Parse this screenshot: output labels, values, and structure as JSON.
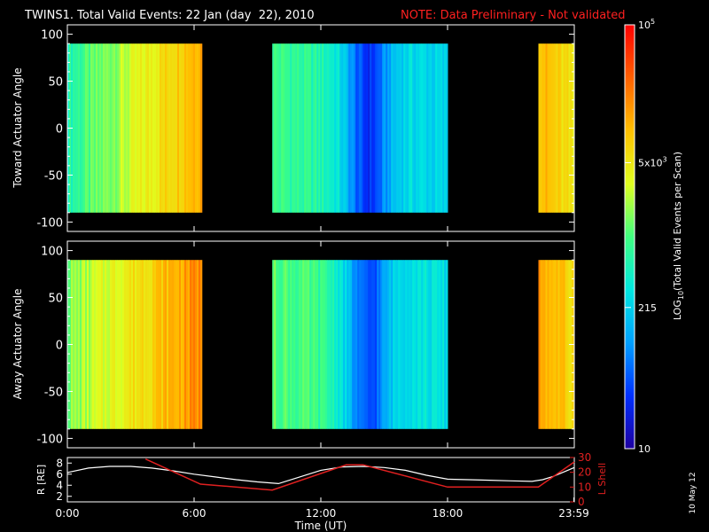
{
  "header": {
    "title": "TWINS1. Total Valid Events: 22 Jan (day  22), 2010",
    "note": "NOTE: Data Preliminary - Not validated"
  },
  "side_stamp": "10 May 12",
  "colors": {
    "background": "#000000",
    "frame": "#ffffff",
    "note": "#ff2020",
    "r_line": "#ffffff",
    "lshell_line": "#e02020"
  },
  "colorbar": {
    "label": "LOG10(Total Valid Events per Scan)",
    "ticks": [
      {
        "label": "10",
        "value": 10
      },
      {
        "label": "215",
        "value": 215
      },
      {
        "label": "5x10^3",
        "value": 5000
      },
      {
        "label": "10^5",
        "value": 100000
      }
    ],
    "scale": "log",
    "range": [
      10,
      100000
    ],
    "stops": [
      "#1e00a0",
      "#0030ff",
      "#00a0ff",
      "#00e8e0",
      "#40ff80",
      "#e0ff20",
      "#ffc000",
      "#ff6000",
      "#ff0000"
    ]
  },
  "chart_data": [
    {
      "type": "heatmap",
      "panel": "toward",
      "ylabel": "Toward Actuator Angle",
      "ylim": [
        -110,
        110
      ],
      "yticks": [
        -100,
        -50,
        0,
        50,
        100
      ],
      "x_range_hours": [
        0,
        24
      ],
      "data_angle_range": [
        -90,
        90
      ],
      "segments": [
        {
          "start": 0.0,
          "end": 6.3,
          "from_value": 600,
          "to_value": 15000
        },
        {
          "start": 9.7,
          "end": 18.0,
          "from_value": 900,
          "to_value": 200,
          "dip_center": 14.2,
          "dip_value": 30
        },
        {
          "start": 22.3,
          "end": 24.0,
          "from_value": 12000,
          "to_value": 4000
        }
      ]
    },
    {
      "type": "heatmap",
      "panel": "away",
      "ylabel": "Away Actuator Angle",
      "ylim": [
        -110,
        110
      ],
      "yticks": [
        -100,
        -50,
        0,
        50,
        100
      ],
      "x_range_hours": [
        0,
        24
      ],
      "data_angle_range": [
        -90,
        90
      ],
      "segments": [
        {
          "start": 0.0,
          "end": 6.3,
          "from_value": 1500,
          "to_value": 20000
        },
        {
          "start": 9.7,
          "end": 18.0,
          "from_value": 1200,
          "to_value": 250,
          "dip_center": 14.2,
          "dip_value": 40
        },
        {
          "start": 22.3,
          "end": 24.0,
          "from_value": 15000,
          "to_value": 6000
        }
      ]
    },
    {
      "type": "line",
      "panel": "orbit",
      "ylabel": "R [RE]",
      "ylabel_right": "L Shell",
      "xlabel": "Time (UT)",
      "xticks": [
        "0:00",
        "6:00",
        "12:00",
        "18:00",
        "23:59"
      ],
      "xtick_hours": [
        0,
        6,
        12,
        18,
        23.98
      ],
      "ylim": [
        1,
        9
      ],
      "yticks": [
        2,
        4,
        6,
        8
      ],
      "ylim_right": [
        0,
        30
      ],
      "yticks_right": [
        0,
        10,
        20,
        30
      ],
      "series": [
        {
          "axis": "left",
          "x": [
            0,
            1,
            2,
            3,
            4,
            5,
            6,
            7,
            8,
            9,
            10,
            11,
            12,
            13,
            14,
            15,
            16,
            17,
            18,
            19,
            20,
            21,
            22,
            22.5,
            23,
            23.5,
            24
          ],
          "values": [
            6.3,
            7.1,
            7.4,
            7.4,
            7.1,
            6.6,
            6.0,
            5.5,
            5.0,
            4.6,
            4.3,
            5.5,
            6.7,
            7.3,
            7.4,
            7.2,
            6.7,
            5.8,
            5.1,
            5.0,
            4.9,
            4.8,
            4.7,
            5.0,
            5.6,
            6.4,
            7.2
          ]
        },
        {
          "axis": "right",
          "x": [
            3.7,
            6.3,
            9.7,
            13.2,
            14.0,
            18.0,
            22.3,
            24.0
          ],
          "values": [
            29,
            12,
            8,
            25,
            25,
            10,
            10,
            27
          ]
        }
      ]
    }
  ]
}
